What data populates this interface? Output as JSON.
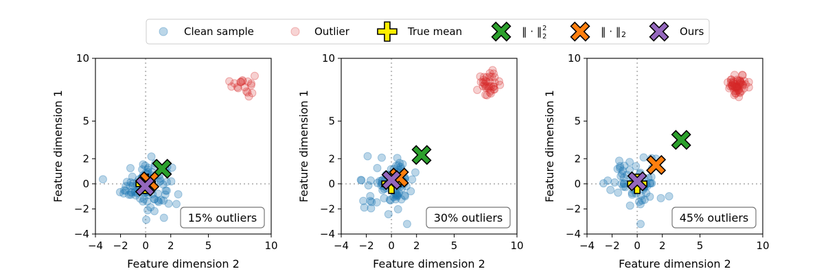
{
  "legend": {
    "clean": "Clean sample",
    "outlier": "Outlier",
    "true_mean": "True mean",
    "l2sq_base": "‖ · ‖",
    "l2sq_sup": "2",
    "l2sq_sub": "2",
    "l2_base": "‖ · ‖",
    "l2_sub": "2",
    "ours": "Ours"
  },
  "colors": {
    "clean": "#1f77b4",
    "outlier": "#d62728",
    "true_mean": "#ffee00",
    "l2sq": "#2ca02c",
    "l2": "#ff7f0e",
    "ours": "#9467bd"
  },
  "chart_data": [
    {
      "type": "scatter",
      "title": "",
      "xlabel": "Feature dimension 2",
      "ylabel": "Feature dimension 1",
      "xlim": [
        -4,
        10
      ],
      "ylim": [
        -4,
        10
      ],
      "xticks": [
        "−4",
        "−2",
        "0",
        "2",
        "5",
        "10"
      ],
      "xtick_values": [
        -4,
        -2,
        0,
        2,
        5,
        10
      ],
      "yticks": [
        "−4",
        "−2",
        "0",
        "2",
        "5",
        "10"
      ],
      "ytick_values": [
        -4,
        -2,
        0,
        2,
        5,
        10
      ],
      "grid": false,
      "annotation": "15% outliers",
      "outlier_cluster": {
        "center": [
          7.8,
          7.9
        ],
        "spread": 0.45,
        "count": 18
      },
      "clean_cluster": {
        "center": [
          0,
          0
        ],
        "spread": 1.0,
        "count": 102
      },
      "estimators": {
        "true_mean": [
          0,
          0
        ],
        "l2sq": [
          1.3,
          1.2
        ],
        "l2": [
          0.3,
          0.2
        ],
        "ours": [
          -0.05,
          -0.2
        ]
      }
    },
    {
      "type": "scatter",
      "title": "",
      "xlabel": "Feature dimension 2",
      "ylabel": "Feature dimension 1",
      "xlim": [
        -4,
        10
      ],
      "ylim": [
        -4,
        10
      ],
      "xticks": [
        "−4",
        "−2",
        "0",
        "2",
        "5",
        "10"
      ],
      "xtick_values": [
        -4,
        -2,
        0,
        2,
        5,
        10
      ],
      "yticks": [
        "−4",
        "−2",
        "0",
        "2",
        "5",
        "10"
      ],
      "ytick_values": [
        -4,
        -2,
        0,
        2,
        5,
        10
      ],
      "grid": false,
      "annotation": "30% outliers",
      "outlier_cluster": {
        "center": [
          7.8,
          8.0
        ],
        "spread": 0.45,
        "count": 36
      },
      "clean_cluster": {
        "center": [
          0,
          0
        ],
        "spread": 1.0,
        "count": 84
      },
      "estimators": {
        "true_mean": [
          0,
          0
        ],
        "l2sq": [
          2.4,
          2.3
        ],
        "l2": [
          0.6,
          0.5
        ],
        "ours": [
          0.0,
          0.3
        ]
      }
    },
    {
      "type": "scatter",
      "title": "",
      "xlabel": "Feature dimension 2",
      "ylabel": "Feature dimension 1",
      "xlim": [
        -4,
        10
      ],
      "ylim": [
        -4,
        10
      ],
      "xticks": [
        "−4",
        "−2",
        "0",
        "2",
        "5",
        "10"
      ],
      "xtick_values": [
        -4,
        -2,
        0,
        2,
        5,
        10
      ],
      "yticks": [
        "−4",
        "−2",
        "0",
        "2",
        "5",
        "10"
      ],
      "ytick_values": [
        -4,
        -2,
        0,
        2,
        5,
        10
      ],
      "grid": false,
      "annotation": "45% outliers",
      "outlier_cluster": {
        "center": [
          8.0,
          7.9
        ],
        "spread": 0.4,
        "count": 54
      },
      "clean_cluster": {
        "center": [
          0,
          0
        ],
        "spread": 1.0,
        "count": 66
      },
      "estimators": {
        "true_mean": [
          0,
          0
        ],
        "l2sq": [
          3.5,
          3.5
        ],
        "l2": [
          1.5,
          1.5
        ],
        "ours": [
          0.0,
          0.2
        ]
      }
    }
  ]
}
